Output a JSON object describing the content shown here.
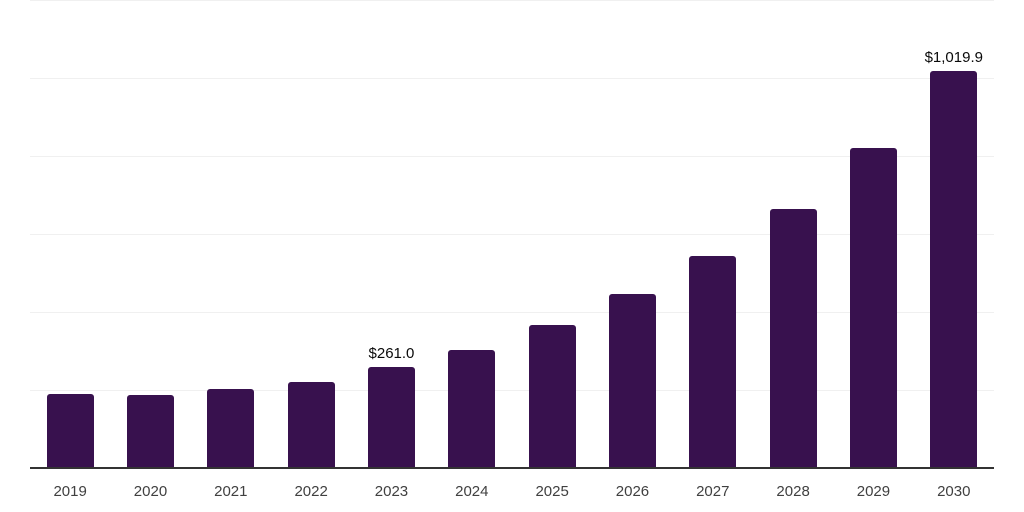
{
  "chart_data": {
    "type": "bar",
    "title": "",
    "xlabel": "",
    "ylabel": "",
    "categories": [
      "2019",
      "2020",
      "2021",
      "2022",
      "2023",
      "2024",
      "2025",
      "2026",
      "2027",
      "2028",
      "2029",
      "2030"
    ],
    "values": [
      192.2,
      189.6,
      205.0,
      224.2,
      261.0,
      305.0,
      369.0,
      448.5,
      545.8,
      666.3,
      822.6,
      1019.9
    ],
    "data_labels": [
      "",
      "",
      "",
      "",
      "$261.0",
      "",
      "",
      "",
      "",
      "",
      "",
      "$1,019.9"
    ],
    "ylim": [
      0,
      1200
    ],
    "gridline_step": 200,
    "grid": true,
    "legend": false,
    "colors": {
      "bar": "#38114E",
      "gridline": "#f0f0f0",
      "axis_line": "#333333",
      "tick_label": "#404040",
      "data_label": "#0a0a0a",
      "background": "#ffffff"
    }
  }
}
